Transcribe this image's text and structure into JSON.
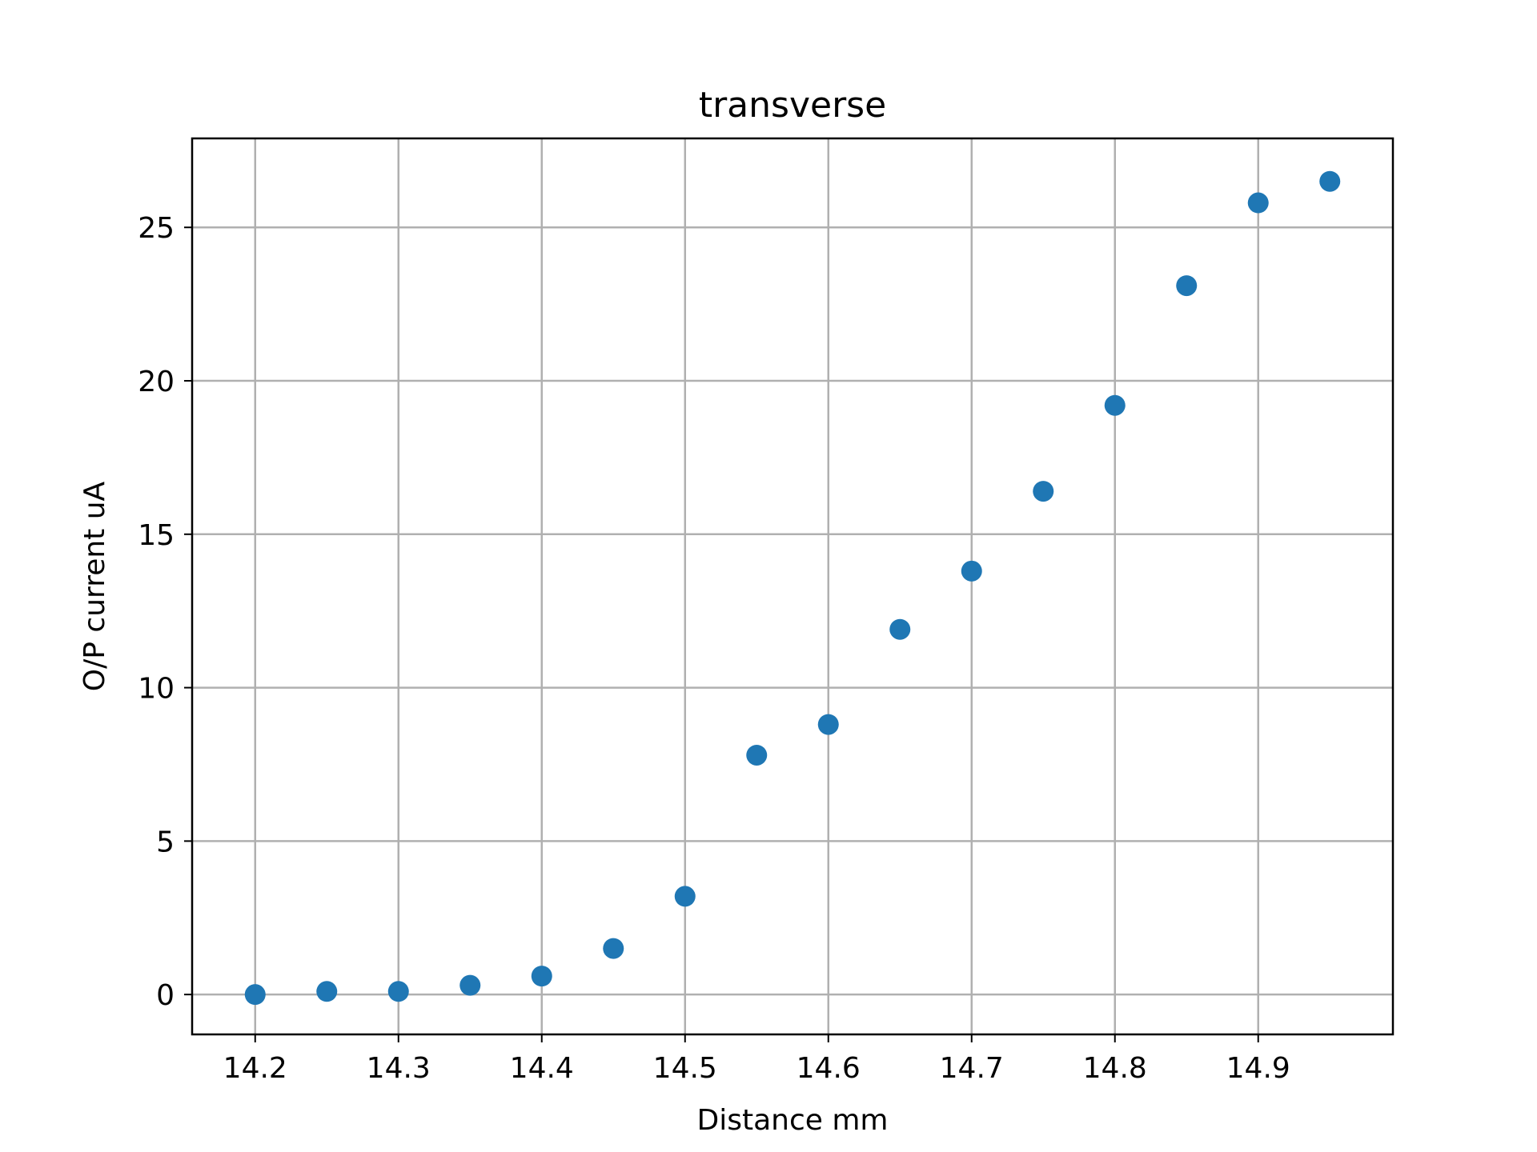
{
  "chart_data": {
    "type": "scatter",
    "title": "transverse",
    "xlabel": "Distance mm",
    "ylabel": "O/P current uA",
    "xlim": [
      14.156,
      14.994
    ],
    "ylim": [
      -1.3,
      27.9
    ],
    "xticks": [
      14.2,
      14.3,
      14.4,
      14.5,
      14.6,
      14.7,
      14.8,
      14.9
    ],
    "xtick_labels": [
      "14.2",
      "14.3",
      "14.4",
      "14.5",
      "14.6",
      "14.7",
      "14.8",
      "14.9"
    ],
    "yticks": [
      0,
      5,
      10,
      15,
      20,
      25
    ],
    "ytick_labels": [
      "0",
      "5",
      "10",
      "15",
      "20",
      "25"
    ],
    "grid": true,
    "marker_color": "#1f77b4",
    "series": [
      {
        "x": [
          14.2,
          14.25,
          14.3,
          14.35,
          14.4,
          14.45,
          14.5,
          14.55,
          14.6,
          14.65,
          14.7,
          14.75,
          14.8,
          14.85,
          14.9,
          14.95
        ],
        "y": [
          0.0,
          0.1,
          0.1,
          0.3,
          0.6,
          1.5,
          3.2,
          7.8,
          8.8,
          11.9,
          13.8,
          16.4,
          19.2,
          23.1,
          25.8,
          26.5
        ]
      }
    ]
  }
}
